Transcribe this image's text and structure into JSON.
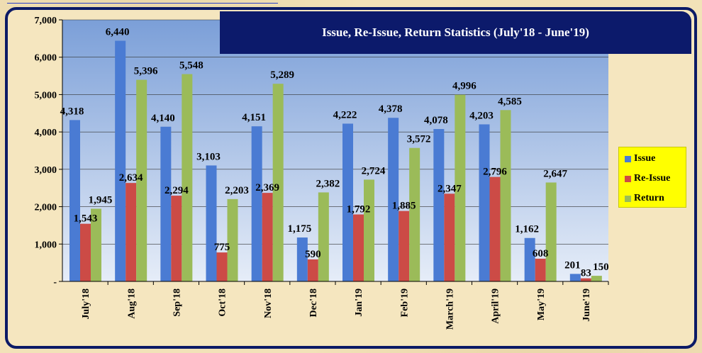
{
  "chart_data": {
    "type": "bar",
    "title": "Issue, Re-Issue, Return Statistics (July'18 - June'19)",
    "categories": [
      "July'18",
      "Aug'18",
      "Sep'18",
      "Oct'18",
      "Nov'18",
      "Dec'18",
      "Jan'19",
      "Feb'19",
      "March'19",
      "April'19",
      "May'19",
      "June'19"
    ],
    "series": [
      {
        "name": "Issue",
        "color": "#4a7bd3",
        "values": [
          4318,
          6440,
          4140,
          3103,
          4151,
          1175,
          4222,
          4378,
          4078,
          4203,
          1162,
          201
        ]
      },
      {
        "name": "Re-Issue",
        "color": "#cc4b46",
        "values": [
          1543,
          2634,
          2294,
          775,
          2369,
          590,
          1792,
          1885,
          2347,
          2796,
          608,
          83
        ]
      },
      {
        "name": "Return",
        "color": "#9bbb59",
        "values": [
          1945,
          5396,
          5548,
          2203,
          5289,
          2382,
          2724,
          3572,
          4996,
          4585,
          2647,
          150
        ]
      }
    ],
    "value_labels": {
      "Issue": [
        "4,318",
        "6,440",
        "4,140",
        "3,103",
        "4,151",
        "1,175",
        "4,222",
        "4,378",
        "4,078",
        "4,203",
        "1,162",
        "201"
      ],
      "Re-Issue": [
        "1,543",
        "2,634",
        "2,294",
        "775",
        "2,369",
        "590",
        "1,792",
        "1,885",
        "2,347",
        "2,796",
        "608",
        "83"
      ],
      "Return": [
        "1,945",
        "5,396",
        "5,548",
        "2,203",
        "5,289",
        "2,382",
        "2,724",
        "3,572",
        "4,996",
        "4,585",
        "2,647",
        "150"
      ]
    },
    "yticks": [
      0,
      1000,
      2000,
      3000,
      4000,
      5000,
      6000,
      7000
    ],
    "ytick_labels": [
      "-",
      "1,000",
      "2,000",
      "3,000",
      "4,000",
      "5,000",
      "6,000",
      "7,000"
    ],
    "ylim": [
      0,
      7000
    ],
    "xlabel": "",
    "ylabel": "",
    "grid": true,
    "legend_position": "right"
  }
}
